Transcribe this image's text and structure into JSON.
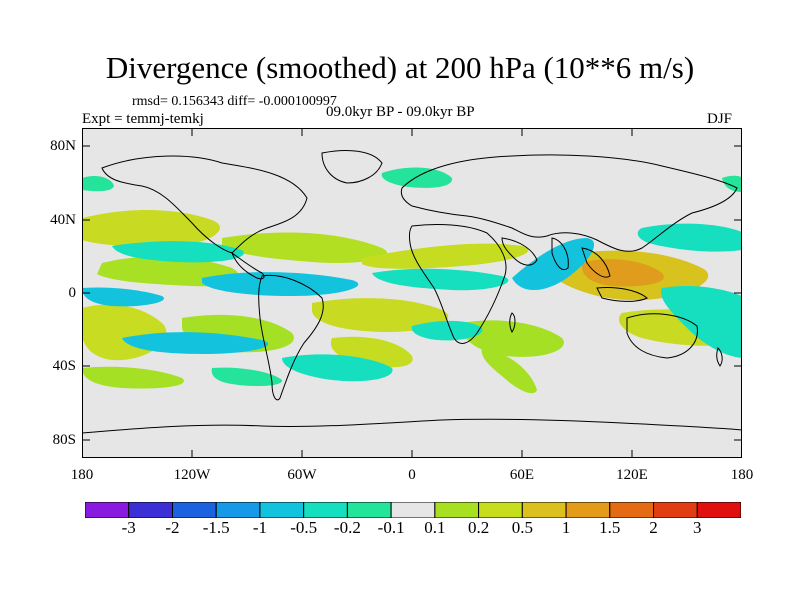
{
  "title": "Divergence (smoothed) at 200 hPa (10**6 m/s)",
  "stats_line": "rmsd= 0.156343 diff= -0.000100997",
  "experiment_line": "Expt = temmj-temkj",
  "period_line": "09.0kyr BP - 09.0kyr BP",
  "season": "DJF",
  "y_ticks": [
    "80N",
    "40N",
    "0",
    "40S",
    "80S"
  ],
  "x_ticks": [
    "180",
    "120W",
    "60W",
    "0",
    "60E",
    "120E",
    "180"
  ],
  "colorbar": {
    "labels": [
      "-3",
      "-2",
      "-1.5",
      "-1",
      "-0.5",
      "-0.2",
      "-0.1",
      "0.1",
      "0.2",
      "0.5",
      "1",
      "1.5",
      "2",
      "3"
    ],
    "colors": [
      "#8a1ae0",
      "#3c2fd6",
      "#1c62e0",
      "#1699e6",
      "#13c3dd",
      "#16dfc0",
      "#24e39a",
      "#e6e6e6",
      "#a6e020",
      "#c7de1f",
      "#dcc11e",
      "#e49b19",
      "#e46a14",
      "#e23c12",
      "#e0100e"
    ]
  },
  "map": {
    "background_color": "#e6e6e6",
    "lon_range": [
      -180,
      180
    ],
    "lat_range": [
      -90,
      90
    ],
    "positive_color": "#c9d82a",
    "negative_color": "#25c6db"
  }
}
